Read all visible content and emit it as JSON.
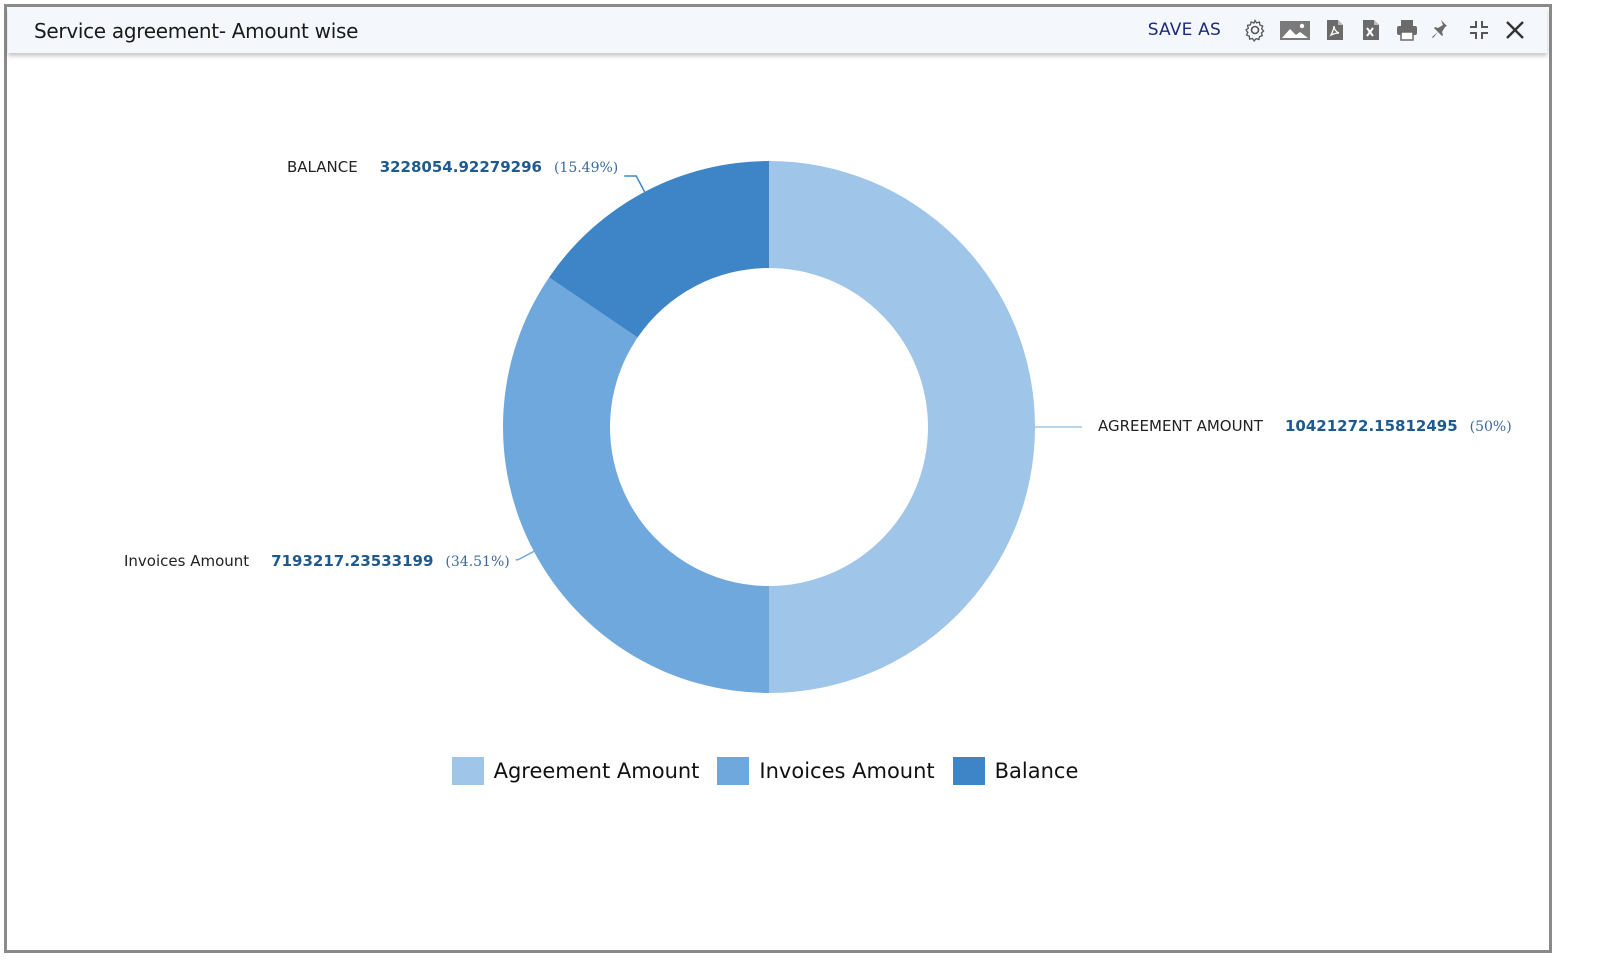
{
  "window": {
    "title": "Service agreement- Amount wise",
    "toolbar": {
      "save_as_label": "SAVE AS",
      "icons": [
        "gear-icon",
        "image-icon",
        "pdf-icon",
        "excel-icon",
        "print-icon",
        "pin-icon",
        "minimize-icon",
        "close-icon"
      ]
    }
  },
  "chart_data": {
    "type": "pie",
    "donut": true,
    "categories": [
      "Agreement Amount",
      "Invoices Amount",
      "Balance"
    ],
    "slice_labels": [
      "AGREEMENT AMOUNT",
      "Invoices Amount",
      "BALANCE"
    ],
    "values": [
      10421272.15812495,
      7193217.23533199,
      3228054.92279296
    ],
    "value_labels": [
      "10421272.15812495",
      "7193217.23533199",
      "3228054.92279296"
    ],
    "percent_labels": [
      "(50%)",
      "(34.51%)",
      "(15.49%)"
    ],
    "colors": [
      "#9fc5e8",
      "#6fa8dc",
      "#3d85c6"
    ],
    "legend": "bottom"
  }
}
